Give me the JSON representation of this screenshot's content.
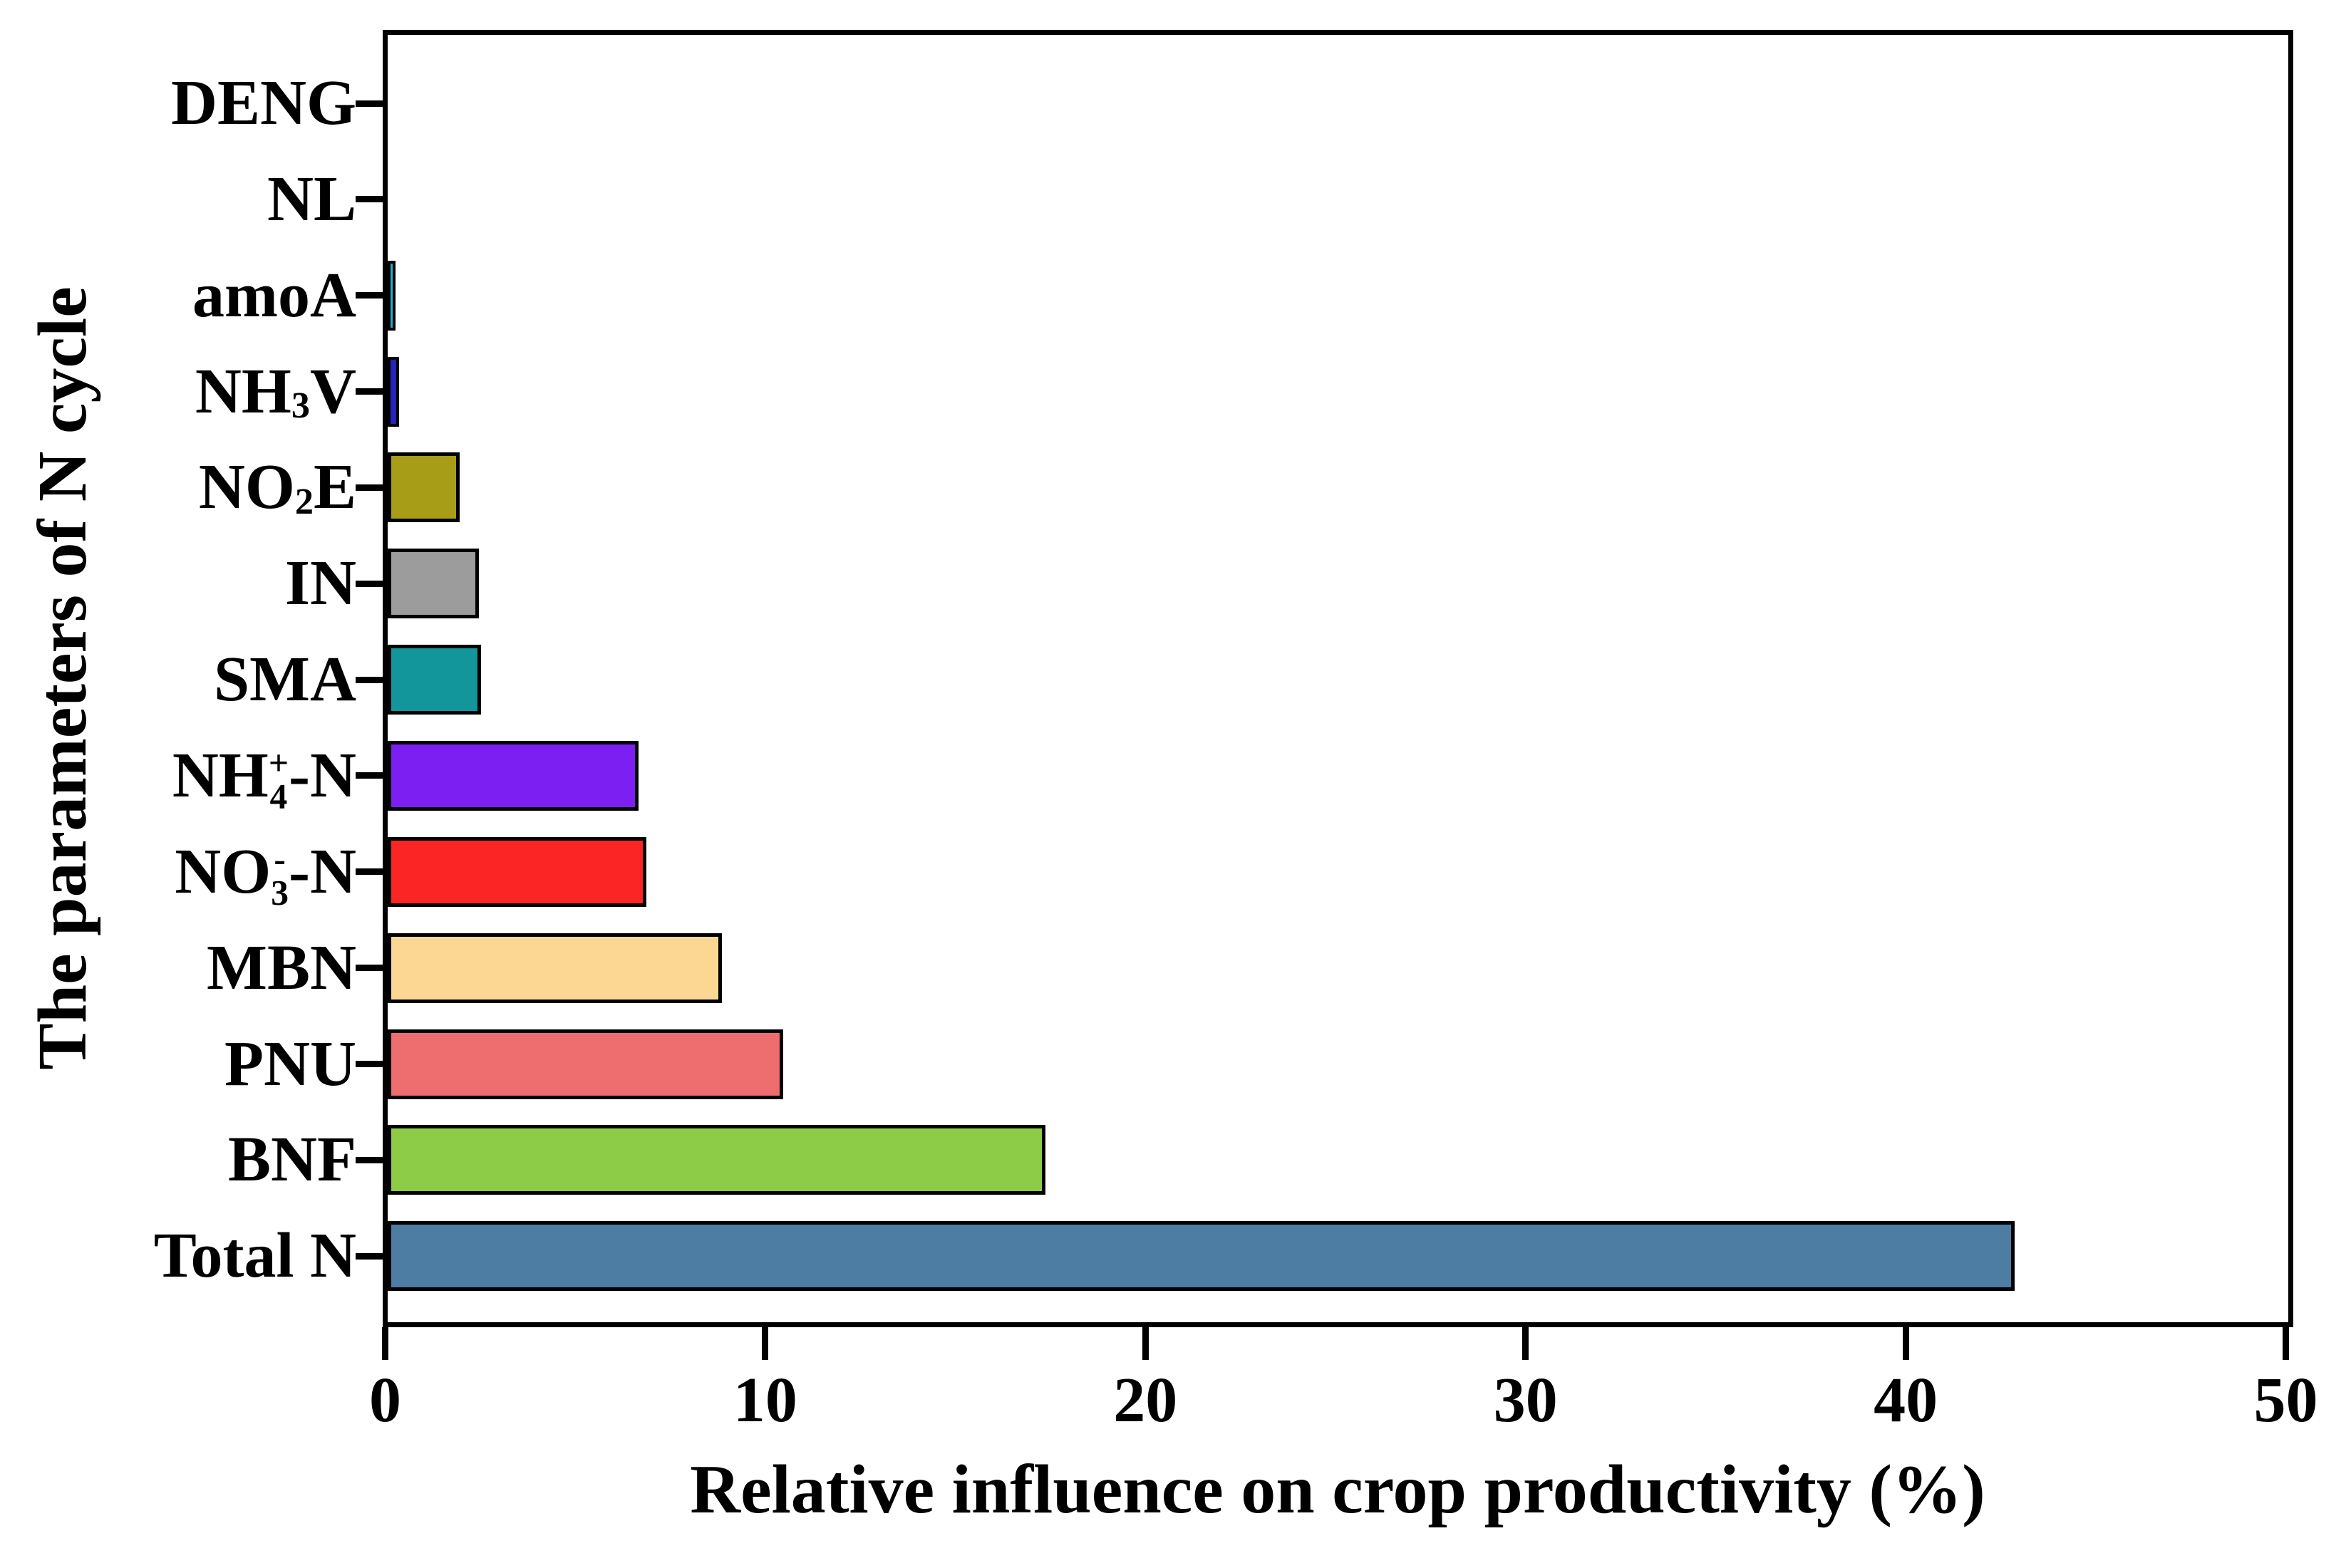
{
  "figure": {
    "background": "#ffffff",
    "axis_color": "#000000",
    "bar_border_color": "#000000"
  },
  "chart_data": {
    "type": "bar",
    "orientation": "horizontal",
    "title": "",
    "xlabel": "Relative influence on crop productivity (%)",
    "ylabel": "The parameters of N cycle",
    "xlim": [
      0,
      50
    ],
    "xticks": [
      "0",
      "10",
      "20",
      "30",
      "40",
      "50"
    ],
    "grid": false,
    "legend": null,
    "categories_top_to_bottom": [
      "DENG",
      "NL",
      "amoA",
      "NH3V",
      "NO2E",
      "IN",
      "SMA",
      "NH4+-N",
      "NO3--N",
      "MBN",
      "PNU",
      "BNF",
      "Total N"
    ],
    "values": [
      0,
      0,
      0.2,
      0.3,
      1.9,
      2.4,
      2.45,
      6.6,
      6.8,
      8.8,
      10.4,
      17.3,
      42.8
    ],
    "colors": [
      null,
      null,
      "#2fa8cc",
      "#2525b8",
      "#a79d17",
      "#9c9c9c",
      "#13969b",
      "#7c1ff2",
      "#fb2525",
      "#fcd794",
      "#ee6d6e",
      "#8dcc47",
      "#4e7da3"
    ],
    "label_segments": [
      [
        {
          "t": "DENG"
        }
      ],
      [
        {
          "t": "NL"
        }
      ],
      [
        {
          "t": "amoA"
        }
      ],
      [
        {
          "t": "NH"
        },
        {
          "sub": "3"
        },
        {
          "t": "V"
        }
      ],
      [
        {
          "t": "NO"
        },
        {
          "sub": "2"
        },
        {
          "t": "E"
        }
      ],
      [
        {
          "t": "IN"
        }
      ],
      [
        {
          "t": "SMA"
        }
      ],
      [
        {
          "t": "NH"
        },
        {
          "stack": {
            "top": "+",
            "bottom": "4"
          }
        },
        {
          "t": "-N"
        }
      ],
      [
        {
          "t": "NO"
        },
        {
          "stack": {
            "top": "-",
            "bottom": "3"
          }
        },
        {
          "t": "-N"
        }
      ],
      [
        {
          "t": "MBN"
        }
      ],
      [
        {
          "t": "PNU"
        }
      ],
      [
        {
          "t": "BNF"
        }
      ],
      [
        {
          "t": "Total N"
        }
      ]
    ]
  }
}
